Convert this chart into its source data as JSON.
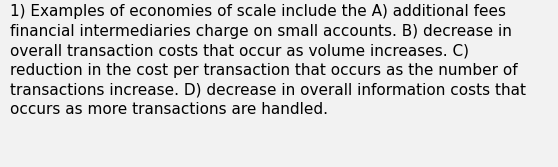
{
  "text": "1) Examples of economies of scale include the A) additional fees financial intermediaries charge on small accounts. B) decrease in overall transaction costs that occur as volume increases. C) reduction in the cost per transaction that occurs as the number of transactions increase. D) decrease in overall information costs that occurs as more transactions are handled.",
  "background_color": "#f2f2f2",
  "text_color": "#000000",
  "font_size": 11.0,
  "fig_width": 5.58,
  "fig_height": 1.67,
  "dpi": 100
}
